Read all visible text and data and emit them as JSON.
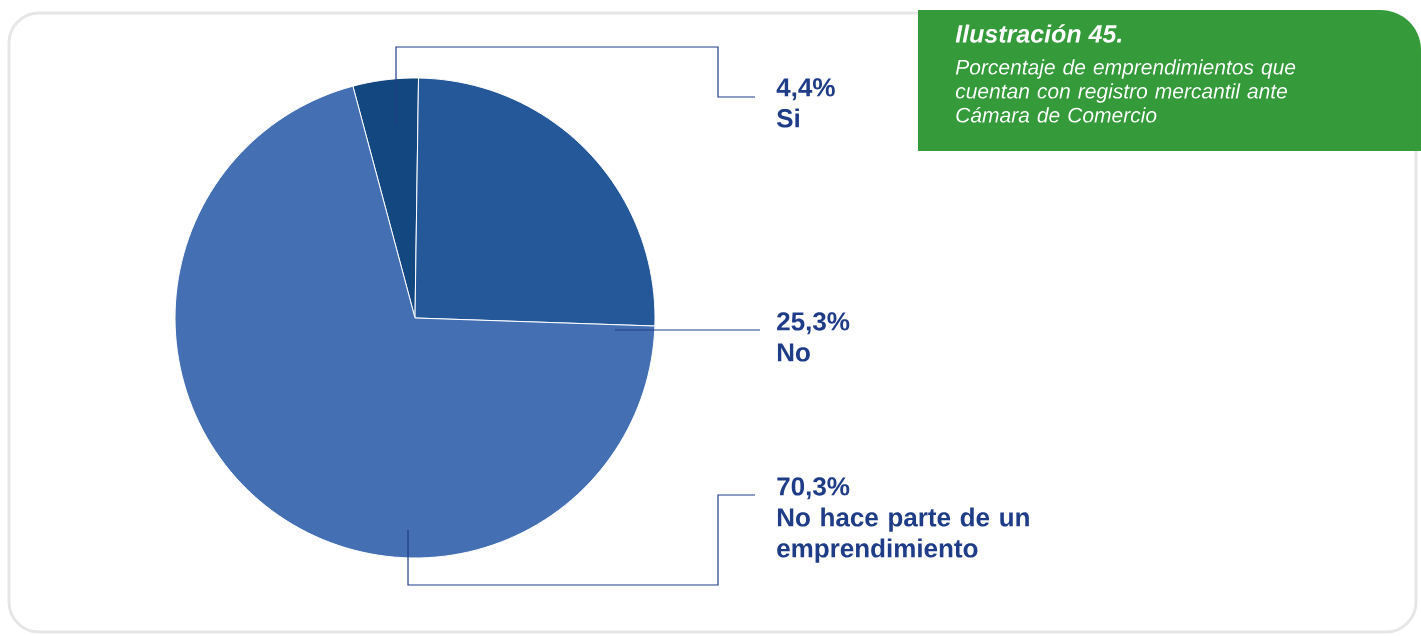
{
  "chart_data": {
    "type": "pie",
    "title": "Ilustración 45.",
    "subtitle": "Porcentaje de emprendimientos que cuentan con registro mercantil ante Cámara de Comercio",
    "categories": [
      "Si",
      "No",
      "No hace parte de un emprendimiento"
    ],
    "values": [
      4.4,
      25.3,
      70.3
    ],
    "value_labels": [
      "4,4%",
      "25,3%",
      "70,3%"
    ],
    "colors": [
      "#12477f",
      "#245898",
      "#4470b3"
    ]
  }
}
